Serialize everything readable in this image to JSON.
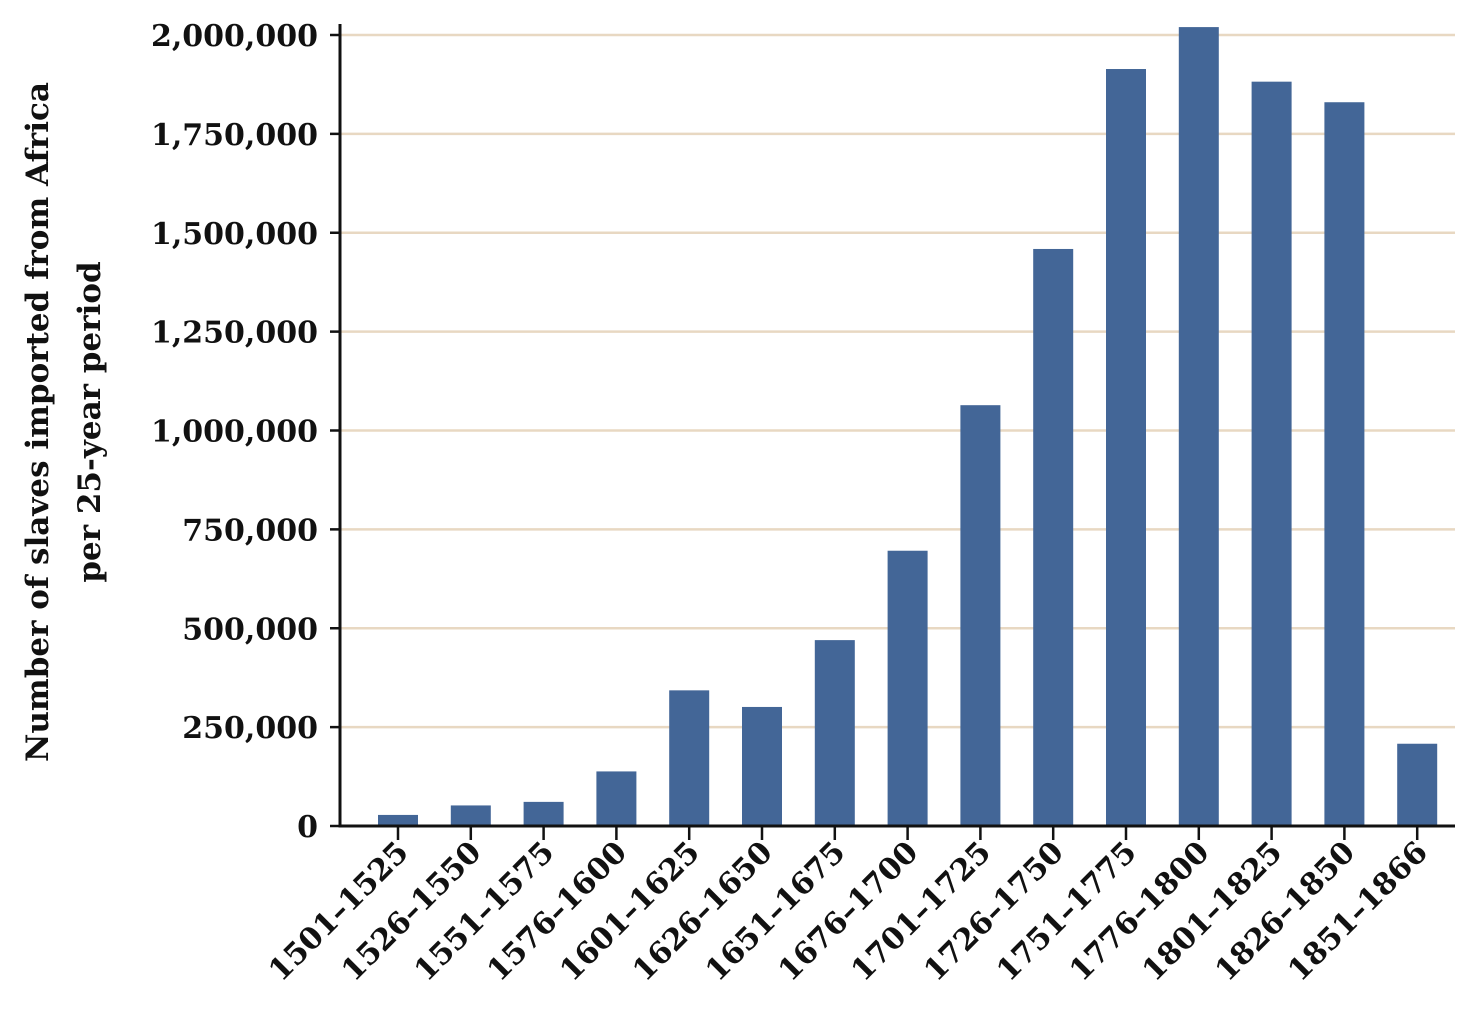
{
  "chart_data": {
    "type": "bar",
    "ylabel_lines": [
      "Number of slaves imported from Africa",
      "per 25-year period"
    ],
    "xlabel": "",
    "categories": [
      "1501–1525",
      "1526–1550",
      "1551–1575",
      "1576–1600",
      "1601–1625",
      "1626–1650",
      "1651–1675",
      "1676–1700",
      "1701–1725",
      "1726–1750",
      "1751–1775",
      "1776–1800",
      "1801–1825",
      "1826–1850",
      "1851–1866"
    ],
    "values": [
      28000,
      52000,
      61000,
      138000,
      343000,
      301000,
      470000,
      696000,
      1064000,
      1459000,
      1914000,
      2020000,
      1882000,
      1830000,
      208000
    ],
    "ylim": [
      0,
      2000000
    ],
    "yticks": [
      0,
      250000,
      500000,
      750000,
      1000000,
      1250000,
      1500000,
      1750000,
      2000000
    ],
    "ytick_labels": [
      "0",
      "250,000",
      "500,000",
      "750,000",
      "1,000,000",
      "1,250,000",
      "1,500,000",
      "1,750,000",
      "2,000,000"
    ],
    "grid": true,
    "legend": "none",
    "bar_color": "#436697",
    "grid_color": "#e8d8c2"
  }
}
